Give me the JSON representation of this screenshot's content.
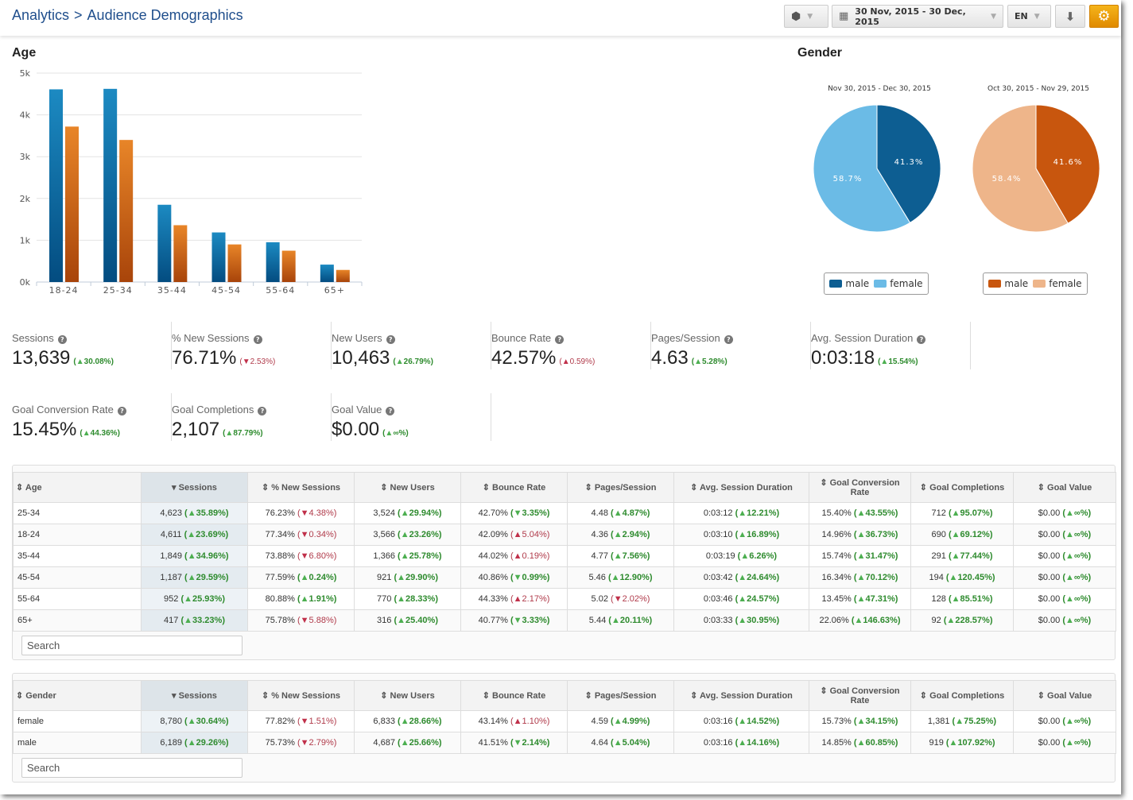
{
  "header": {
    "breadcrumb": [
      "Analytics",
      ">",
      "Audience Demographics"
    ],
    "date_range": "30 Nov, 2015 - 30 Dec, 2015",
    "language": "EN",
    "icons": [
      "cube-icon",
      "calendar-icon",
      "download-icon",
      "gear-icon"
    ],
    "accent": "#f0a010"
  },
  "age": {
    "title": "Age"
  },
  "gender": {
    "title": "Gender",
    "pies": [
      {
        "period": "Nov 30, 2015 - Dec 30, 2015",
        "male": 41.3,
        "female": 58.7,
        "male_label": "41.3%",
        "female_label": "58.7%",
        "colors": {
          "male": "#0d5e92",
          "female": "#6bbbe6"
        },
        "legend": [
          "male",
          "female"
        ]
      },
      {
        "period": "Oct 30, 2015 - Nov 29, 2015",
        "male": 41.6,
        "female": 58.4,
        "male_label": "41.6%",
        "female_label": "58.4%",
        "colors": {
          "male": "#c8560e",
          "female": "#eeb58a"
        },
        "legend": [
          "male",
          "female"
        ]
      }
    ]
  },
  "chart_data": {
    "type": "bar",
    "categories": [
      "18-24",
      "25-34",
      "35-44",
      "45-54",
      "55-64",
      "65+"
    ],
    "series": [
      {
        "values": [
          4611,
          4623,
          1849,
          1187,
          952,
          417
        ],
        "color": "#0d5e92"
      },
      {
        "values": [
          3720,
          3400,
          1360,
          900,
          750,
          290
        ],
        "color": "#d9661a"
      }
    ],
    "ylim": [
      0,
      5000
    ],
    "yticks": [
      "0k",
      "1k",
      "2k",
      "3k",
      "4k",
      "5k"
    ],
    "grid": true
  },
  "metrics": [
    {
      "label": "Sessions",
      "value": "13,639",
      "delta": "30.08%",
      "dir": "up",
      "good": true
    },
    {
      "label": "% New Sessions",
      "value": "76.71%",
      "delta": "2.53%",
      "dir": "down",
      "good": false
    },
    {
      "label": "New Users",
      "value": "10,463",
      "delta": "26.79%",
      "dir": "up",
      "good": true
    },
    {
      "label": "Bounce Rate",
      "value": "42.57%",
      "delta": "0.59%",
      "dir": "up",
      "good": false
    },
    {
      "label": "Pages/Session",
      "value": "4.63",
      "delta": "5.28%",
      "dir": "up",
      "good": true
    },
    {
      "label": "Avg. Session Duration",
      "value": "0:03:18",
      "delta": "15.54%",
      "dir": "up",
      "good": true
    },
    {
      "label": "Goal Conversion Rate",
      "value": "15.45%",
      "delta": "44.36%",
      "dir": "up",
      "good": true
    },
    {
      "label": "Goal Completions",
      "value": "2,107",
      "delta": "87.79%",
      "dir": "up",
      "good": true
    },
    {
      "label": "Goal Value",
      "value": "$0.00",
      "delta": "∞%",
      "dir": "up",
      "good": true
    }
  ],
  "columns": [
    "Sessions",
    "% New Sessions",
    "New Users",
    "Bounce Rate",
    "Pages/Session",
    "Avg. Session Duration",
    "Goal Conversion Rate",
    "Goal Completions",
    "Goal Value"
  ],
  "age_table": {
    "dim": "Age",
    "search_placeholder": "Search",
    "rows": [
      {
        "k": "25-34",
        "c": [
          [
            "4,623",
            "35.89%",
            "u",
            1
          ],
          [
            "76.23%",
            "4.38%",
            "d",
            0
          ],
          [
            "3,524",
            "29.94%",
            "u",
            1
          ],
          [
            "42.70%",
            "3.35%",
            "d",
            1
          ],
          [
            "4.48",
            "4.87%",
            "u",
            1
          ],
          [
            "0:03:12",
            "12.21%",
            "u",
            1
          ],
          [
            "15.40%",
            "43.55%",
            "u",
            1
          ],
          [
            "712",
            "95.07%",
            "u",
            1
          ],
          [
            "$0.00",
            "∞%",
            "u",
            1
          ]
        ]
      },
      {
        "k": "18-24",
        "c": [
          [
            "4,611",
            "23.69%",
            "u",
            1
          ],
          [
            "77.34%",
            "0.34%",
            "d",
            0
          ],
          [
            "3,566",
            "23.26%",
            "u",
            1
          ],
          [
            "42.09%",
            "5.04%",
            "u",
            0
          ],
          [
            "4.36",
            "2.94%",
            "u",
            1
          ],
          [
            "0:03:10",
            "16.89%",
            "u",
            1
          ],
          [
            "14.96%",
            "36.73%",
            "u",
            1
          ],
          [
            "690",
            "69.12%",
            "u",
            1
          ],
          [
            "$0.00",
            "∞%",
            "u",
            1
          ]
        ]
      },
      {
        "k": "35-44",
        "c": [
          [
            "1,849",
            "34.96%",
            "u",
            1
          ],
          [
            "73.88%",
            "6.80%",
            "d",
            0
          ],
          [
            "1,366",
            "25.78%",
            "u",
            1
          ],
          [
            "44.02%",
            "0.19%",
            "u",
            0
          ],
          [
            "4.77",
            "7.56%",
            "u",
            1
          ],
          [
            "0:03:19",
            "6.26%",
            "u",
            1
          ],
          [
            "15.74%",
            "31.47%",
            "u",
            1
          ],
          [
            "291",
            "77.44%",
            "u",
            1
          ],
          [
            "$0.00",
            "∞%",
            "u",
            1
          ]
        ]
      },
      {
        "k": "45-54",
        "c": [
          [
            "1,187",
            "29.59%",
            "u",
            1
          ],
          [
            "77.59%",
            "0.24%",
            "u",
            1
          ],
          [
            "921",
            "29.90%",
            "u",
            1
          ],
          [
            "40.86%",
            "0.99%",
            "d",
            1
          ],
          [
            "5.46",
            "12.90%",
            "u",
            1
          ],
          [
            "0:03:42",
            "24.64%",
            "u",
            1
          ],
          [
            "16.34%",
            "70.12%",
            "u",
            1
          ],
          [
            "194",
            "120.45%",
            "u",
            1
          ],
          [
            "$0.00",
            "∞%",
            "u",
            1
          ]
        ]
      },
      {
        "k": "55-64",
        "c": [
          [
            "952",
            "25.93%",
            "u",
            1
          ],
          [
            "80.88%",
            "1.91%",
            "u",
            1
          ],
          [
            "770",
            "28.33%",
            "u",
            1
          ],
          [
            "44.33%",
            "2.17%",
            "u",
            0
          ],
          [
            "5.02",
            "2.02%",
            "d",
            0
          ],
          [
            "0:03:46",
            "24.57%",
            "u",
            1
          ],
          [
            "13.45%",
            "47.31%",
            "u",
            1
          ],
          [
            "128",
            "85.51%",
            "u",
            1
          ],
          [
            "$0.00",
            "∞%",
            "u",
            1
          ]
        ]
      },
      {
        "k": "65+",
        "c": [
          [
            "417",
            "33.23%",
            "u",
            1
          ],
          [
            "75.78%",
            "5.88%",
            "d",
            0
          ],
          [
            "316",
            "25.40%",
            "u",
            1
          ],
          [
            "40.77%",
            "3.33%",
            "d",
            1
          ],
          [
            "5.44",
            "20.11%",
            "u",
            1
          ],
          [
            "0:03:33",
            "30.95%",
            "u",
            1
          ],
          [
            "22.06%",
            "146.63%",
            "u",
            1
          ],
          [
            "92",
            "228.57%",
            "u",
            1
          ],
          [
            "$0.00",
            "∞%",
            "u",
            1
          ]
        ]
      }
    ]
  },
  "gender_table": {
    "dim": "Gender",
    "search_placeholder": "Search",
    "rows": [
      {
        "k": "female",
        "c": [
          [
            "8,780",
            "30.64%",
            "u",
            1
          ],
          [
            "77.82%",
            "1.51%",
            "d",
            0
          ],
          [
            "6,833",
            "28.66%",
            "u",
            1
          ],
          [
            "43.14%",
            "1.10%",
            "u",
            0
          ],
          [
            "4.59",
            "4.99%",
            "u",
            1
          ],
          [
            "0:03:16",
            "14.52%",
            "u",
            1
          ],
          [
            "15.73%",
            "34.15%",
            "u",
            1
          ],
          [
            "1,381",
            "75.25%",
            "u",
            1
          ],
          [
            "$0.00",
            "∞%",
            "u",
            1
          ]
        ]
      },
      {
        "k": "male",
        "c": [
          [
            "6,189",
            "29.26%",
            "u",
            1
          ],
          [
            "75.73%",
            "2.79%",
            "d",
            0
          ],
          [
            "4,687",
            "25.66%",
            "u",
            1
          ],
          [
            "41.51%",
            "2.14%",
            "d",
            1
          ],
          [
            "4.64",
            "5.04%",
            "u",
            1
          ],
          [
            "0:03:16",
            "14.16%",
            "u",
            1
          ],
          [
            "14.85%",
            "60.85%",
            "u",
            1
          ],
          [
            "919",
            "107.92%",
            "u",
            1
          ],
          [
            "$0.00",
            "∞%",
            "u",
            1
          ]
        ]
      }
    ]
  }
}
